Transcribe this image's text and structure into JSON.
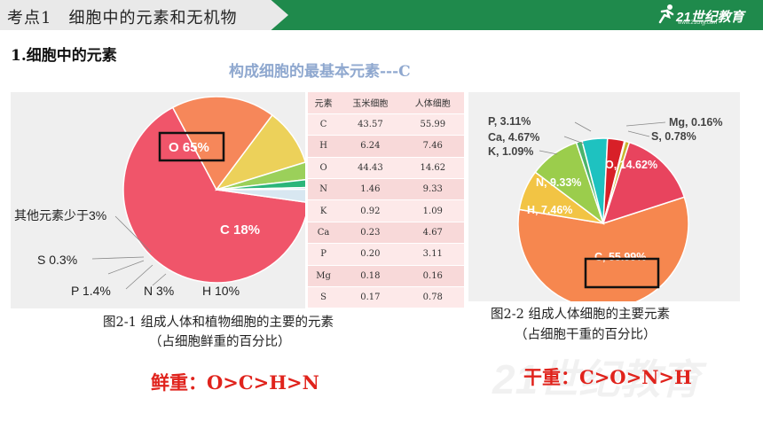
{
  "header": {
    "title": "考点1　细胞中的元素和无机物",
    "logo_text": "21世纪教育",
    "logo_sub": "www.21cnjy.com"
  },
  "section_heading": "1.细胞中的元素",
  "basic_element_note": "构成细胞的最基本元素---C",
  "pie_fresh": {
    "labels": {
      "o": "O 65%",
      "c": "C 18%",
      "h": "H 10%",
      "n": "N 3%",
      "p": "P 1.4%",
      "s": "S 0.3%",
      "other": "其他元素少于3%"
    },
    "colors": {
      "o": "#f0556a",
      "c": "#f6875a",
      "h": "#ecd15a",
      "n": "#9bd05a",
      "p": "#2bb57a",
      "s": "#5b8ad0",
      "other": "#d8e7f1"
    }
  },
  "chart_data": [
    {
      "type": "pie",
      "title": "图2-1 组成人体和植物细胞的主要的元素",
      "categories": [
        "O",
        "C",
        "H",
        "N",
        "P",
        "S",
        "其他元素"
      ],
      "values": [
        65,
        18,
        10,
        3,
        1.4,
        0.3,
        2.3
      ]
    },
    {
      "type": "pie",
      "title": "图2-2 组成人体细胞的主要元素",
      "categories": [
        "C",
        "O",
        "H",
        "N",
        "K",
        "Ca",
        "P",
        "Mg",
        "S"
      ],
      "values": [
        55.99,
        14.62,
        7.46,
        9.33,
        1.09,
        4.67,
        3.11,
        0.16,
        0.78
      ]
    },
    {
      "type": "table",
      "columns": [
        "元素",
        "玉米细胞",
        "人体细胞"
      ],
      "rows": [
        [
          "C",
          "43.57",
          "55.99"
        ],
        [
          "H",
          "6.24",
          "7.46"
        ],
        [
          "O",
          "44.43",
          "14.62"
        ],
        [
          "N",
          "1.46",
          "9.33"
        ],
        [
          "K",
          "0.92",
          "1.09"
        ],
        [
          "Ca",
          "0.23",
          "4.67"
        ],
        [
          "P",
          "0.20",
          "3.11"
        ],
        [
          "Mg",
          "0.18",
          "0.16"
        ],
        [
          "S",
          "0.17",
          "0.78"
        ]
      ]
    }
  ],
  "pie_dry": {
    "labels": {
      "p": "P, 3.11%",
      "mg": "Mg, 0.16%",
      "ca": "Ca, 4.67%",
      "s": "S, 0.78%",
      "k": "K, 1.09%",
      "n": "N, 9.33%",
      "o": "O, 14.62%",
      "h": "H, 7.46%",
      "c": "C, 55.99%"
    },
    "colors": {
      "c": "#f6874f",
      "o": "#e8445e",
      "h": "#f2c444",
      "n": "#9bcd4c",
      "k": "#4cb46c",
      "ca": "#1ec2c0",
      "p": "#d82028",
      "mg": "#7c4a2c",
      "s": "#c8b830"
    }
  },
  "captions": {
    "fig1_line1": "图2-1  组成人体和植物细胞的主要的元素",
    "fig1_line2": "（占细胞鲜重的百分比）",
    "fig2_line1": "图2-2  组成人体细胞的主要元素",
    "fig2_line2": "（占细胞干重的百分比）"
  },
  "summary": {
    "fresh": "鲜重：O>C>H>N",
    "dry": "干重：C>O>N>H"
  }
}
